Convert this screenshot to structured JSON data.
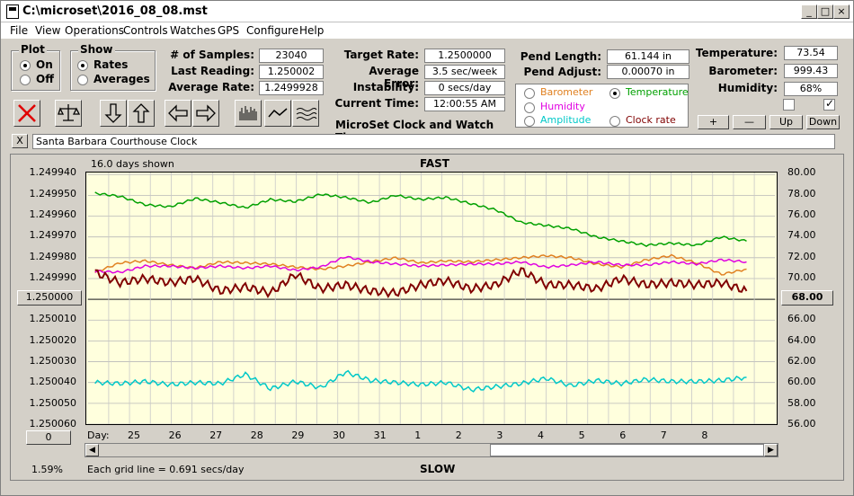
{
  "window": {
    "title": "C:\\microset\\2016_08_08.mst"
  },
  "title_buttons": {
    "minimize": "_",
    "maximize": "□",
    "close": "×"
  },
  "menu": {
    "items": [
      "File",
      "View",
      "Operations",
      "Controls",
      "Watches",
      "GPS",
      "Configure",
      "Help"
    ]
  },
  "plot_group": {
    "title": "Plot",
    "on_label": "On",
    "off_label": "Off",
    "selected": "On"
  },
  "show_group": {
    "title": "Show",
    "rates_label": "Rates",
    "averages_label": "Averages",
    "selected": "Rates"
  },
  "stats": {
    "samples_label": "# of Samples:",
    "samples": "23040",
    "last_label": "Last Reading:",
    "last": "1.250002",
    "avg_rate_label": "Average Rate:",
    "avg_rate": "1.2499928",
    "target_label": "Target Rate:",
    "target": "1.2500000",
    "avg_error_label": "Average Error:",
    "avg_error": "3.5 sec/week",
    "instability_label": "Instability:",
    "instability": "0 secs/day",
    "time_label": "Current Time:",
    "time": "12:00:55 AM",
    "pend_length_label": "Pend Length:",
    "pend_length": "61.144 in",
    "pend_adjust_label": "Pend Adjust:",
    "pend_adjust": "0.00070 in",
    "temperature_label": "Temperature:",
    "temperature": "73.54",
    "barometer_label": "Barometer:",
    "barometer": "999.43",
    "humidity_label": "Humidity:",
    "humidity": "68%"
  },
  "app_caption": "MicroSet Clock and Watch Timer",
  "sensor_options": {
    "barometer": "Barometer",
    "temperature": "Temperature",
    "humidity": "Humidity",
    "amplitude": "Amplitude",
    "clock_rate": "Clock rate",
    "selected": "Temperature"
  },
  "sensor_colors": {
    "barometer": "#e08020",
    "temperature": "#00a000",
    "humidity": "#e000e0",
    "amplitude": "#00c8c8",
    "clock_rate": "#800000"
  },
  "adjust_buttons": {
    "plus": "+",
    "minus": "—",
    "up": "Up",
    "down": "Down"
  },
  "checkboxes": {
    "left_checked": false,
    "right_checked": true
  },
  "icon_buttons": [
    "cancel-icon",
    "balance-scale-icon",
    "arrow-down-icon",
    "arrow-up-icon",
    "arrow-left-icon",
    "arrow-right-icon",
    "bar-graph-icon",
    "line-graph-icon",
    "wave-graph-icon"
  ],
  "clock_name": "Santa Barbara Courthouse Clock",
  "clear_button": "X",
  "chart_header": {
    "days_shown": "16.0 days shown",
    "top_label": "FAST",
    "bottom_label": "SLOW",
    "grid_note": "Each grid line = 0.691 secs/day",
    "percent": "1.59%",
    "day_label": "Day:",
    "center_rate_button": "1.250000",
    "right_button": "68.00",
    "zero_button": "0"
  },
  "chart_data": {
    "type": "line",
    "left_axis": {
      "ticks": [
        "1.249940",
        "1.249950",
        "1.249960",
        "1.249970",
        "1.249980",
        "1.249990",
        "1.250000",
        "1.250010",
        "1.250020",
        "1.250030",
        "1.250040",
        "1.250050",
        "1.250060"
      ],
      "range": [
        1.24994,
        1.25006
      ],
      "inverted": true
    },
    "right_axis": {
      "ticks": [
        "80.00",
        "78.00",
        "76.00",
        "74.00",
        "72.00",
        "70.00",
        "68.00",
        "66.00",
        "64.00",
        "62.00",
        "60.00",
        "58.00",
        "56.00"
      ],
      "range": [
        56,
        80
      ]
    },
    "x_ticks": [
      "25",
      "26",
      "27",
      "28",
      "29",
      "30",
      "31",
      "1",
      "2",
      "3",
      "4",
      "5",
      "6",
      "7",
      "8"
    ],
    "grid": true,
    "series": [
      {
        "name": "Temperature",
        "color": "#00a000",
        "values": [
          78.2,
          77.9,
          77.1,
          76.9,
          77.7,
          77.3,
          76.8,
          77.6,
          77.4,
          78.1,
          77.8,
          77.3,
          78.0,
          77.6,
          77.8,
          77.2,
          76.6,
          75.4,
          75.1,
          74.8,
          74.0,
          73.6,
          73.2,
          73.4,
          73.2,
          74.0,
          73.6
        ]
      },
      {
        "name": "Barometer",
        "color": "#e08020",
        "values": [
          70.6,
          71.5,
          71.7,
          71.3,
          71.0,
          71.6,
          71.5,
          71.4,
          71.1,
          70.9,
          71.2,
          71.6,
          72.0,
          71.5,
          71.7,
          71.6,
          71.8,
          72.0,
          72.2,
          72.0,
          71.4,
          71.1,
          71.8,
          72.2,
          71.5,
          70.4,
          70.9
        ]
      },
      {
        "name": "Humidity",
        "color": "#e000e0",
        "values": [
          70.7,
          70.6,
          71.2,
          71.2,
          71.0,
          71.2,
          71.0,
          71.2,
          70.8,
          71.1,
          72.1,
          71.6,
          71.4,
          71.2,
          71.3,
          71.4,
          71.4,
          71.6,
          71.1,
          71.3,
          71.6,
          71.3,
          71.3,
          71.6,
          71.4,
          71.8,
          71.6
        ]
      },
      {
        "name": "Clock rate",
        "values": [
          1.249987,
          1.249992,
          1.24999,
          1.249992,
          1.24999,
          1.249996,
          1.249994,
          1.249997,
          1.249988,
          1.249995,
          1.249993,
          1.249996,
          1.249997,
          1.249993,
          1.249991,
          1.249995,
          1.249993,
          1.249986,
          1.249993,
          1.249993,
          1.249995,
          1.24999,
          1.249993,
          1.249992,
          1.249993,
          1.249992,
          1.249996
        ],
        "color": "#800000"
      },
      {
        "name": "Amplitude",
        "color": "#00c8c8",
        "values": [
          60.0,
          59.9,
          60.1,
          59.8,
          60.0,
          59.9,
          60.8,
          59.4,
          60.1,
          59.5,
          61.0,
          60.2,
          60.0,
          59.8,
          60.0,
          59.3,
          59.6,
          59.9,
          60.4,
          59.7,
          60.2,
          59.9,
          60.3,
          60.1,
          60.1,
          60.2,
          60.5
        ]
      }
    ]
  }
}
